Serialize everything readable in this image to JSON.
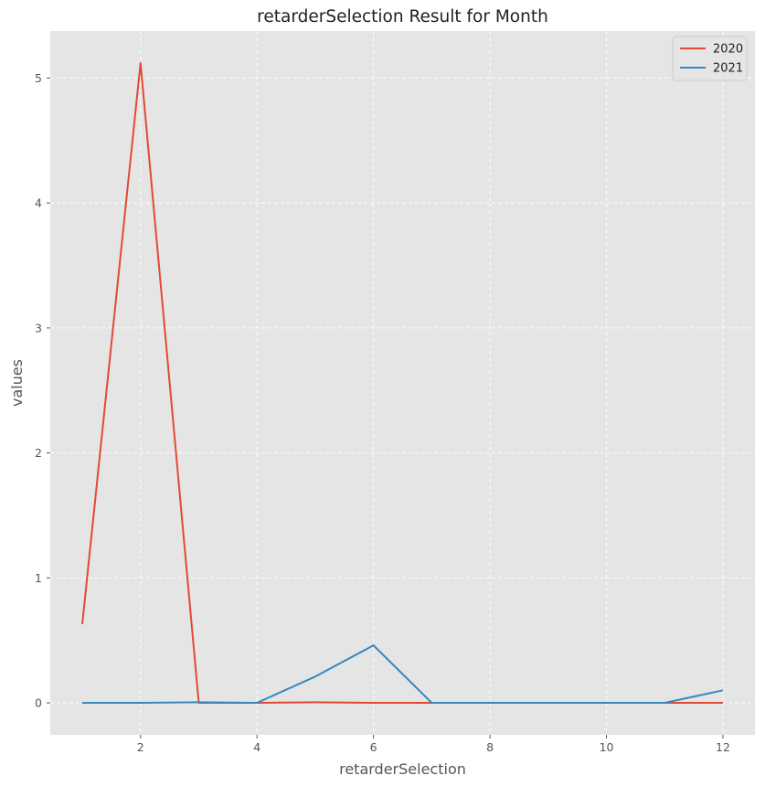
{
  "chart_data": {
    "type": "line",
    "title": "retarderSelection Result for Month",
    "xlabel": "retarderSelection",
    "ylabel": "values",
    "x": [
      1,
      2,
      3,
      4,
      5,
      6,
      7,
      8,
      9,
      10,
      11,
      12
    ],
    "series": [
      {
        "name": "2020",
        "color": "#e24a33",
        "values": [
          0.63,
          5.12,
          0.0,
          0.0,
          0.005,
          0.0,
          0.0,
          0.0,
          0.0,
          0.0,
          0.0,
          0.0
        ]
      },
      {
        "name": "2021",
        "color": "#348abd",
        "values": [
          0.0,
          0.0,
          0.005,
          0.0,
          0.21,
          0.46,
          0.0,
          0.0,
          0.0,
          0.0,
          0.0,
          0.1
        ]
      }
    ],
    "xlim": [
      0.45,
      12.55
    ],
    "ylim": [
      -0.256,
      5.376
    ],
    "xticks": [
      2,
      4,
      6,
      8,
      10,
      12
    ],
    "yticks": [
      0,
      1,
      2,
      3,
      4,
      5
    ],
    "grid": true,
    "legend_position": "top-right",
    "colors": {
      "plot_background": "#e5e5e5",
      "grid": "#ffffff"
    }
  }
}
